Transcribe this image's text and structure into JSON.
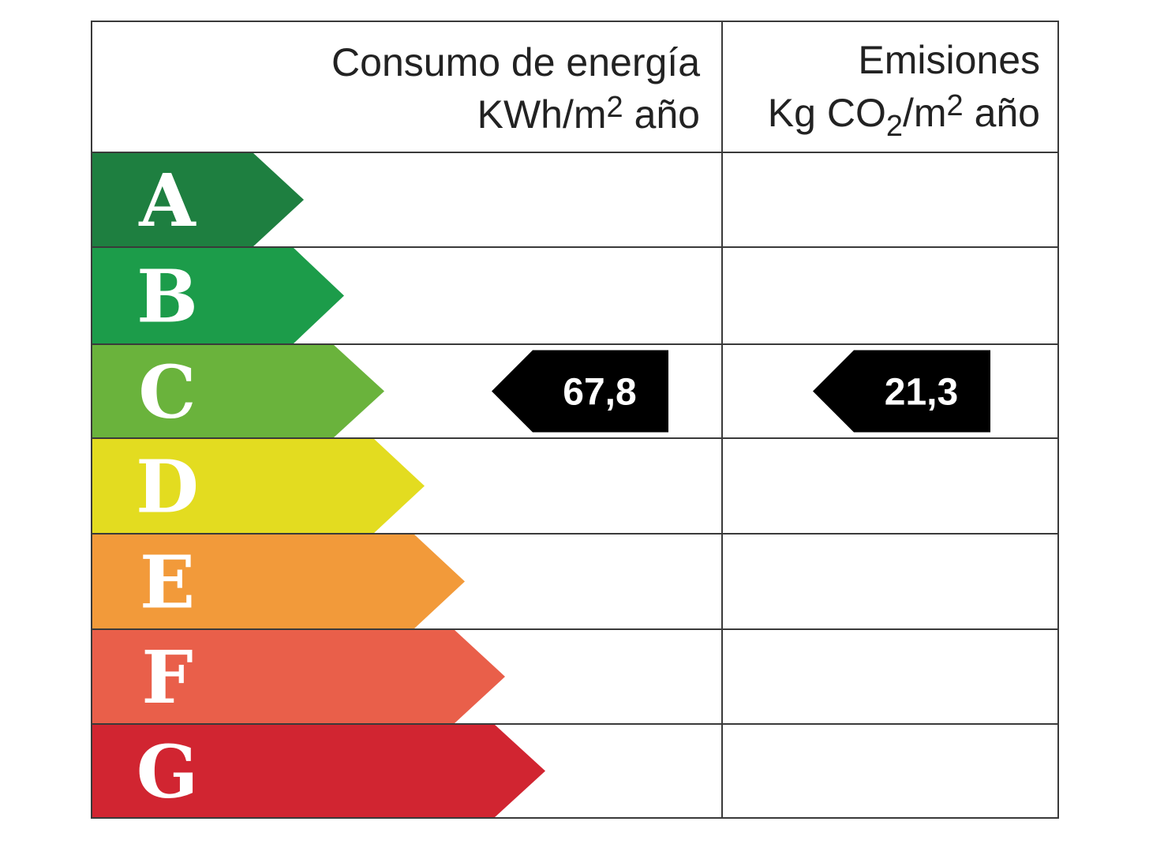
{
  "header": {
    "energy": {
      "title": "Consumo de energía",
      "unit": [
        {
          "text": "KWh/m"
        },
        {
          "text": "2",
          "pos": "sup"
        },
        {
          "text": " año"
        }
      ]
    },
    "emissions": {
      "title": "Emisiones",
      "unit": [
        {
          "text": "Kg CO"
        },
        {
          "text": "2",
          "pos": "sub"
        },
        {
          "text": "/m"
        },
        {
          "text": "2",
          "pos": "sup"
        },
        {
          "text": " año"
        }
      ]
    }
  },
  "rows": [
    {
      "letter": "A",
      "color": "#1e7f40"
    },
    {
      "letter": "B",
      "color": "#1c9c4a"
    },
    {
      "letter": "C",
      "color": "#6ab33c",
      "energy": "67,8",
      "emissions": "21,3"
    },
    {
      "letter": "D",
      "color": "#e3dc20"
    },
    {
      "letter": "E",
      "color": "#f29a3a"
    },
    {
      "letter": "F",
      "color": "#e95f4a"
    },
    {
      "letter": "G",
      "color": "#d12531"
    }
  ]
}
